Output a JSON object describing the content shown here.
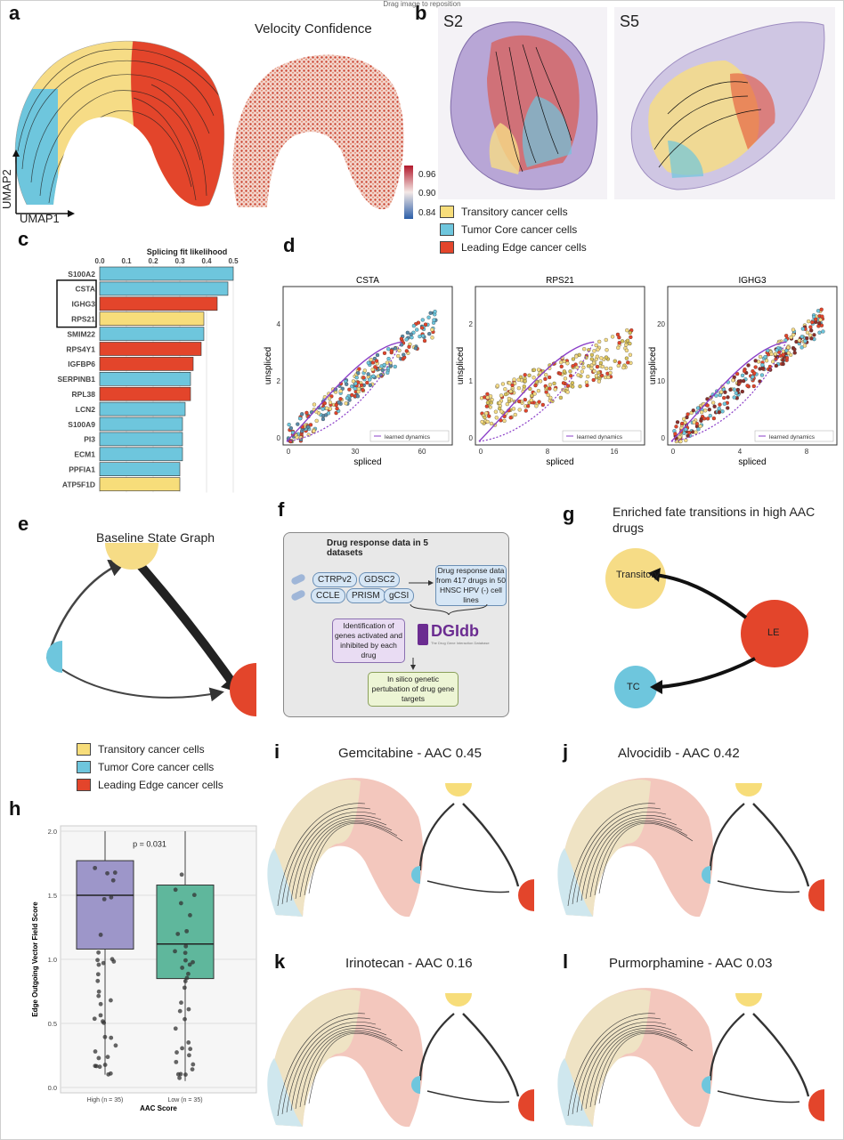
{
  "top_note": "Drag image to reposition",
  "panel_labels": {
    "a": "a",
    "b": "b",
    "c": "c",
    "d": "d",
    "e": "e",
    "f": "f",
    "g": "g",
    "h": "h",
    "i": "i",
    "j": "j",
    "k": "k",
    "l": "l"
  },
  "colors": {
    "transitory": "#f7dd7a",
    "tumor_core": "#6ec6dd",
    "leading_edge": "#e3452b"
  },
  "panel_a": {
    "velocity_title": "Velocity Confidence",
    "axis_x": "UMAP1",
    "axis_y": "UMAP2",
    "colorbar_ticks": [
      "0.96",
      "0.90",
      "0.84"
    ]
  },
  "panel_b": {
    "left": "S2",
    "right": "S5"
  },
  "legend": [
    "Transitory cancer cells",
    "Tumor Core cancer cells",
    "Leading Edge cancer cells"
  ],
  "panel_c": {
    "chart_data": {
      "type": "bar",
      "title": "Splicing fit likelihood",
      "xlim": [
        0,
        0.5
      ],
      "ticks": [
        "0.0",
        "0.1",
        "0.2",
        "0.3",
        "0.4",
        "0.5"
      ],
      "categories": [
        "S100A2",
        "CSTA",
        "IGHG3",
        "RPS21",
        "SMIM22",
        "RPS4Y1",
        "IGFBP6",
        "SERPINB1",
        "RPL38",
        "LCN2",
        "S100A9",
        "PI3",
        "ECM1",
        "PPFIA1",
        "ATP5F1D"
      ],
      "values": [
        0.5,
        0.48,
        0.44,
        0.39,
        0.39,
        0.38,
        0.35,
        0.34,
        0.34,
        0.32,
        0.31,
        0.31,
        0.31,
        0.3,
        0.3
      ],
      "groups": [
        "tc",
        "tc",
        "le",
        "tr",
        "tc",
        "le",
        "le",
        "tc",
        "le",
        "tc",
        "tc",
        "tc",
        "tc",
        "tc",
        "tr"
      ],
      "boxed": [
        "CSTA",
        "IGHG3",
        "RPS21"
      ]
    }
  },
  "panel_d": {
    "xlabel": "spliced",
    "ylabel": "unspliced",
    "legend": "learned dynamics",
    "plots": [
      {
        "title": "CSTA",
        "xticks": [
          "0",
          "30",
          "60"
        ],
        "yticks": [
          "0",
          "2",
          "4"
        ]
      },
      {
        "title": "RPS21",
        "xticks": [
          "0",
          "8",
          "16"
        ],
        "yticks": [
          "0",
          "1",
          "2"
        ]
      },
      {
        "title": "IGHG3",
        "xticks": [
          "0",
          "4",
          "8"
        ],
        "yticks": [
          "0",
          "10",
          "20"
        ]
      }
    ]
  },
  "panel_e": {
    "title": "Baseline State Graph"
  },
  "panel_f": {
    "box_title": "Drug response data in 5 datasets",
    "datasets": [
      "CTRPv2",
      "GDSC2",
      "CCLE",
      "PRISM",
      "gCSI"
    ],
    "result_box": "Drug response data from 417 drugs in 50 HNSC HPV (-) cell lines",
    "identification": "Identification of genes activated and inhibited by each drug",
    "dgidb": "DGIdb",
    "dgidb_sub": "The Drug Gene Interaction Database",
    "perturbation": "In silico genetic pertubation of drug gene targets"
  },
  "panel_g": {
    "title": "Enriched fate transitions in high AAC drugs",
    "nodes": [
      "Transitory",
      "LE",
      "TC"
    ]
  },
  "panel_h": {
    "chart_data": {
      "type": "box",
      "ylabel": "Edge Outgoing Vector Field Score",
      "xlabel": "AAC Score",
      "categories": [
        "High (n = 35)",
        "Low (n = 35)"
      ],
      "ylim": [
        0,
        2.0
      ],
      "yticks": [
        "0.0",
        "0.5",
        "1.0",
        "1.5",
        "2.0"
      ],
      "pvalue": "p = 0.031",
      "series": [
        {
          "q1": 1.08,
          "median": 1.5,
          "q3": 1.77,
          "min": 0.1,
          "max": 2.0
        },
        {
          "q1": 0.85,
          "median": 1.12,
          "q3": 1.58,
          "min": 0.05,
          "max": 2.0
        }
      ]
    }
  },
  "panel_titles": {
    "i": "Gemcitabine - AAC 0.45",
    "j": "Alvocidib - AAC 0.42",
    "k": "Irinotecan - AAC 0.16",
    "l": "Purmorphamine - AAC 0.03"
  }
}
